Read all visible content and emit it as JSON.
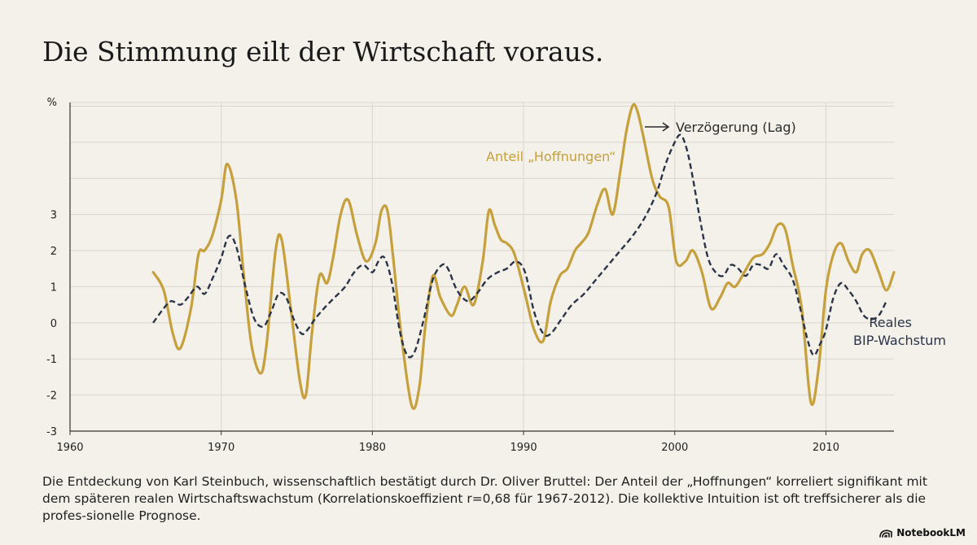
{
  "title": "Die Stimmung eilt der Wirtschaft voraus.",
  "caption": "Die Entdeckung von Karl Steinbuch, wissenschaftlich bestätigt durch Dr. Oliver Bruttel: Der Anteil der „Hoffnungen“ korreliert signifikant mit dem späteren realen Wirtschaftswachstum (Korrelationskoeffizient r=0,68 für 1967-2012). Die kollektive Intuition ist oft treffsicherer als die profes-sionelle Prognose.",
  "brand": {
    "label": "NotebookLM",
    "icon": "notebooklm-logo-icon"
  },
  "colors": {
    "hopes": "#c5a03c",
    "gdp": "#2b3447",
    "grid": "#d9d6cc",
    "axis": "#333333"
  },
  "chart_data": {
    "type": "line",
    "title": "Die Stimmung eilt der Wirtschaft voraus.",
    "ylabel": "%",
    "xlim": [
      1960,
      2014.5
    ],
    "ylim": [
      -3,
      6.1
    ],
    "xticks": [
      1960,
      1970,
      1980,
      1990,
      2000,
      2010
    ],
    "yticks": [
      -3,
      -2,
      -1,
      0,
      1,
      2,
      3
    ],
    "grid": true,
    "series": [
      {
        "name": "Anteil „Hoffnungen“",
        "style": "solid",
        "x": [
          1965.5,
          1966.2,
          1966.8,
          1967.3,
          1968.0,
          1968.5,
          1968.9,
          1969.4,
          1970.0,
          1970.4,
          1971.0,
          1971.5,
          1972.0,
          1972.6,
          1973.0,
          1973.6,
          1974.0,
          1974.6,
          1975.2,
          1975.6,
          1976.0,
          1976.5,
          1977.0,
          1977.4,
          1977.9,
          1978.4,
          1979.0,
          1979.6,
          1980.2,
          1980.6,
          1981.0,
          1981.4,
          1981.9,
          1982.6,
          1983.1,
          1983.5,
          1984.0,
          1984.5,
          1985.2,
          1985.6,
          1986.1,
          1986.7,
          1987.3,
          1987.7,
          1988.1,
          1988.5,
          1988.9,
          1989.4,
          1990.1,
          1990.7,
          1991.3,
          1991.8,
          1992.4,
          1992.9,
          1993.4,
          1993.8,
          1994.3,
          1994.9,
          1995.4,
          1995.9,
          1996.4,
          1996.8,
          1997.2,
          1997.5,
          1997.9,
          1998.5,
          1999.0,
          1999.6,
          2000.1,
          2000.7,
          2001.2,
          2001.8,
          2002.4,
          2003.0,
          2003.5,
          2004.0,
          2004.6,
          2005.2,
          2005.8,
          2006.3,
          2006.8,
          2007.3,
          2007.8,
          2008.4,
          2009.0,
          2009.5,
          2010.0,
          2010.5,
          2011.0,
          2011.5,
          2012.0,
          2012.4,
          2012.9,
          2013.5,
          2014.0,
          2014.5
        ],
        "y": [
          1.4,
          0.9,
          -0.3,
          -0.7,
          0.4,
          1.9,
          2.0,
          2.4,
          3.4,
          4.4,
          3.4,
          1.3,
          -0.6,
          -1.4,
          -0.6,
          2.0,
          2.3,
          0.4,
          -1.6,
          -2.0,
          -0.3,
          1.3,
          1.1,
          1.8,
          3.0,
          3.4,
          2.4,
          1.7,
          2.2,
          3.1,
          3.1,
          1.7,
          -0.3,
          -2.3,
          -1.8,
          -0.1,
          1.3,
          0.7,
          0.2,
          0.5,
          1.0,
          0.5,
          1.7,
          3.1,
          2.7,
          2.3,
          2.2,
          1.9,
          0.8,
          -0.2,
          -0.5,
          0.6,
          1.3,
          1.5,
          2.0,
          2.2,
          2.5,
          3.3,
          3.7,
          3.0,
          4.2,
          5.3,
          6.0,
          5.9,
          5.2,
          4.0,
          3.5,
          3.2,
          1.7,
          1.7,
          2.0,
          1.4,
          0.4,
          0.7,
          1.1,
          1.0,
          1.4,
          1.8,
          1.9,
          2.2,
          2.7,
          2.6,
          1.6,
          0.4,
          -2.2,
          -1.3,
          0.9,
          1.9,
          2.2,
          1.7,
          1.4,
          1.9,
          2.0,
          1.4,
          0.9,
          1.4
        ]
      },
      {
        "name": "Reales BIP-Wachstum",
        "style": "dashed",
        "x": [
          1965.5,
          1966.2,
          1966.7,
          1967.3,
          1967.8,
          1968.4,
          1968.9,
          1969.4,
          1970.0,
          1970.5,
          1971.0,
          1971.6,
          1972.2,
          1972.8,
          1973.3,
          1973.8,
          1974.3,
          1974.8,
          1975.3,
          1975.7,
          1976.2,
          1976.8,
          1977.5,
          1978.2,
          1978.8,
          1979.4,
          1980.0,
          1980.4,
          1980.8,
          1981.3,
          1981.8,
          1982.3,
          1982.8,
          1983.4,
          1984.0,
          1984.6,
          1985.0,
          1985.6,
          1986.3,
          1986.9,
          1987.6,
          1988.3,
          1988.9,
          1989.5,
          1990.1,
          1990.7,
          1991.3,
          1991.8,
          1992.5,
          1993.2,
          1994.0,
          1994.8,
          1995.6,
          1996.4,
          1997.2,
          1998.0,
          1998.8,
          1999.4,
          2000.0,
          2000.4,
          2000.8,
          2001.2,
          2001.7,
          2002.2,
          2002.7,
          2003.2,
          2003.7,
          2004.2,
          2004.7,
          2005.2,
          2005.7,
          2006.2,
          2006.7,
          2007.2,
          2007.8,
          2008.3,
          2008.8,
          2009.2,
          2009.6,
          2010.0,
          2010.5,
          2011.0,
          2011.5,
          2012.0,
          2012.5,
          2013.0,
          2013.5,
          2014.0
        ],
        "y": [
          0.0,
          0.4,
          0.6,
          0.5,
          0.7,
          1.0,
          0.8,
          1.2,
          1.8,
          2.4,
          2.1,
          1.0,
          0.1,
          -0.1,
          0.3,
          0.8,
          0.7,
          0.1,
          -0.3,
          -0.2,
          0.1,
          0.4,
          0.7,
          1.0,
          1.4,
          1.6,
          1.4,
          1.7,
          1.8,
          1.1,
          -0.2,
          -0.9,
          -0.8,
          0.1,
          1.2,
          1.6,
          1.5,
          0.9,
          0.6,
          0.8,
          1.2,
          1.4,
          1.5,
          1.7,
          1.4,
          0.3,
          -0.3,
          -0.3,
          0.1,
          0.5,
          0.8,
          1.2,
          1.6,
          2.0,
          2.4,
          2.9,
          3.6,
          4.4,
          5.0,
          5.2,
          4.8,
          4.0,
          2.8,
          1.8,
          1.4,
          1.3,
          1.6,
          1.5,
          1.3,
          1.6,
          1.6,
          1.5,
          1.9,
          1.6,
          1.2,
          0.4,
          -0.5,
          -0.9,
          -0.6,
          -0.2,
          0.7,
          1.1,
          0.9,
          0.6,
          0.2,
          0.1,
          0.2,
          0.6
        ]
      }
    ],
    "annotations": {
      "hopes_label": "Anteil „Hoffnungen“",
      "gdp_label_line1": "Reales",
      "gdp_label_line2": "BIP-Wachstum",
      "lag_label": "Verzögerung (Lag)",
      "lag_arrow_icon": "right-arrow-icon"
    }
  }
}
